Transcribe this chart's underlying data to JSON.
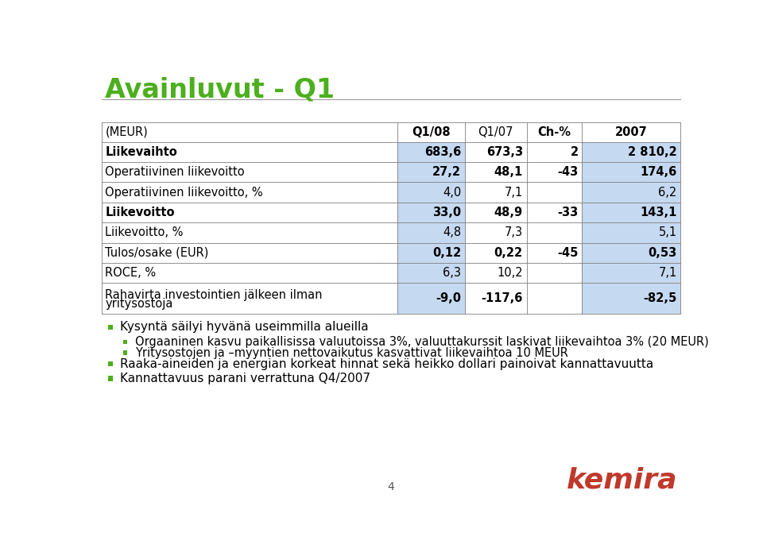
{
  "title": "Avainluvut - Q1",
  "title_color": "#4caf1e",
  "title_fontsize": 24,
  "header_row": [
    "(MEUR)",
    "Q1/08",
    "Q1/07",
    "Ch-%",
    "2007"
  ],
  "rows": [
    [
      "Liikevaihto",
      "683,6",
      "673,3",
      "2",
      "2 810,2"
    ],
    [
      "Operatiivinen liikevoitto",
      "27,2",
      "48,1",
      "-43",
      "174,6"
    ],
    [
      "Operatiivinen liikevoitto, %",
      "4,0",
      "7,1",
      "",
      "6,2"
    ],
    [
      "Liikevoitto",
      "33,0",
      "48,9",
      "-33",
      "143,1"
    ],
    [
      "Liikevoitto, %",
      "4,8",
      "7,3",
      "",
      "5,1"
    ],
    [
      "Tulos/osake (EUR)",
      "0,12",
      "0,22",
      "-45",
      "0,53"
    ],
    [
      "ROCE, %",
      "6,3",
      "10,2",
      "",
      "7,1"
    ],
    [
      "Rahavirta investointien jälkeen ilman\nyritysostoja",
      "-9,0",
      "-117,6",
      "",
      "-82,5"
    ]
  ],
  "row_label_bold": [
    true,
    false,
    false,
    true,
    false,
    false,
    false,
    false
  ],
  "row_data_bold": [
    true,
    true,
    false,
    true,
    false,
    true,
    false,
    true
  ],
  "col_data_bg_blue": [
    true,
    false,
    false,
    true
  ],
  "header_label_bold": [
    false,
    true,
    false,
    true,
    true
  ],
  "col_blue": "#c5d9f1",
  "col_white": "#ffffff",
  "grid_color": "#7f7f7f",
  "bullet_points": [
    {
      "level": 1,
      "text": "Kysyntä säilyi hyvänä useimmilla alueilla"
    },
    {
      "level": 2,
      "text": "Orgaaninen kasvu paikallisissa valuutoissa 3%, valuuttakurssit laskivat liikevaihtoa 3% (20 MEUR)"
    },
    {
      "level": 2,
      "text": "Yritysostojen ja –myyntien nettovaikutus kasvattivat liikevaihtoa 10 MEUR"
    },
    {
      "level": 1,
      "text": "Raaka-aineiden ja energian korkeat hinnat sekä heikko dollari painoivat kannattavuutta"
    },
    {
      "level": 1,
      "text": "Kannattavuus parani verrattuna Q4/2007"
    }
  ],
  "footer_number": "4",
  "kemira_color": "#c0392b",
  "bg_color": "#ffffff"
}
